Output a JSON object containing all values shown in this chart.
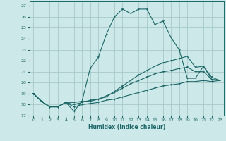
{
  "title": "",
  "xlabel": "Humidex (Indice chaleur)",
  "background_color": "#cde8e8",
  "grid_color": "#a8c8c8",
  "line_color": "#1a6666",
  "xlim": [
    -0.5,
    23.5
  ],
  "ylim": [
    17,
    27.4
  ],
  "xticks": [
    0,
    1,
    2,
    3,
    4,
    5,
    6,
    7,
    8,
    9,
    10,
    11,
    12,
    13,
    14,
    15,
    16,
    17,
    18,
    19,
    20,
    21,
    22,
    23
  ],
  "yticks": [
    17,
    18,
    19,
    20,
    21,
    22,
    23,
    24,
    25,
    26,
    27
  ],
  "lines": [
    {
      "x": [
        0,
        1,
        2,
        3,
        4,
        5,
        6,
        7,
        8,
        9,
        10,
        11,
        12,
        13,
        14,
        15,
        16,
        17,
        18,
        19,
        20,
        21,
        22,
        23
      ],
      "y": [
        19,
        18.3,
        17.8,
        17.8,
        18.2,
        17.4,
        18.3,
        21.3,
        22.3,
        24.4,
        26.0,
        26.7,
        26.3,
        26.7,
        26.7,
        25.3,
        25.6,
        24.1,
        23.0,
        20.4,
        20.4,
        21.5,
        20.3,
        20.2
      ]
    },
    {
      "x": [
        0,
        1,
        2,
        3,
        4,
        5,
        6,
        7,
        8,
        9,
        10,
        11,
        12,
        13,
        14,
        15,
        16,
        17,
        18,
        19,
        20,
        21,
        22,
        23
      ],
      "y": [
        19,
        18.3,
        17.8,
        17.8,
        18.2,
        18.2,
        18.3,
        18.3,
        18.5,
        18.7,
        19.2,
        19.7,
        20.2,
        20.7,
        21.1,
        21.5,
        21.8,
        22.0,
        22.2,
        22.4,
        21.4,
        21.5,
        20.5,
        20.2
      ]
    },
    {
      "x": [
        0,
        1,
        2,
        3,
        4,
        5,
        6,
        7,
        8,
        9,
        10,
        11,
        12,
        13,
        14,
        15,
        16,
        17,
        18,
        19,
        20,
        21,
        22,
        23
      ],
      "y": [
        19,
        18.3,
        17.8,
        17.8,
        18.2,
        18.0,
        18.2,
        18.4,
        18.5,
        18.8,
        19.1,
        19.5,
        19.9,
        20.2,
        20.5,
        20.8,
        21.0,
        21.1,
        21.3,
        21.4,
        21.0,
        21.0,
        20.3,
        20.2
      ]
    },
    {
      "x": [
        0,
        1,
        2,
        3,
        4,
        5,
        6,
        7,
        8,
        9,
        10,
        11,
        12,
        13,
        14,
        15,
        16,
        17,
        18,
        19,
        20,
        21,
        22,
        23
      ],
      "y": [
        19,
        18.3,
        17.8,
        17.8,
        18.2,
        17.8,
        18.0,
        18.1,
        18.2,
        18.4,
        18.5,
        18.7,
        18.9,
        19.1,
        19.3,
        19.5,
        19.7,
        19.8,
        19.9,
        20.1,
        20.1,
        20.2,
        20.1,
        20.2
      ]
    }
  ]
}
